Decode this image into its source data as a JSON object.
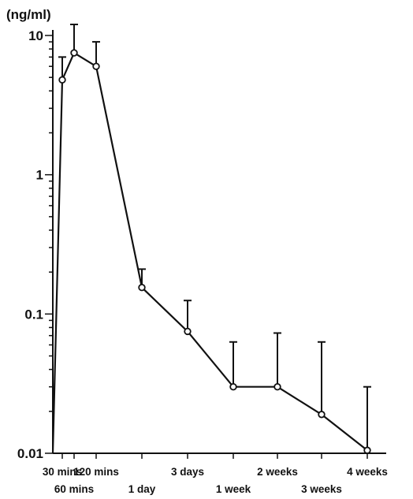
{
  "chart_data": {
    "type": "line",
    "ylabel": "(ng/ml)",
    "yscale": "log",
    "ylim": [
      0.01,
      10
    ],
    "y_ticks": [
      {
        "value": 10,
        "label": "10"
      },
      {
        "value": 1,
        "label": "1"
      },
      {
        "value": 0.1,
        "label": "0.1"
      },
      {
        "value": 0.01,
        "label": "0.01"
      }
    ],
    "x_time_days": [
      0.0208,
      0.0417,
      0.0833,
      1,
      3,
      7,
      14,
      21,
      28
    ],
    "x_labels": [
      "30 mins",
      "60 mins",
      "120 mins",
      "1 day",
      "3 days",
      "1 week",
      "2 weeks",
      "3 weeks",
      "4 weeks"
    ],
    "series": [
      {
        "values": [
          4.8,
          7.5,
          6.0,
          0.155,
          0.075,
          0.03,
          0.03,
          0.019,
          0.0105
        ],
        "error_upper": [
          7.0,
          12.0,
          9.0,
          0.21,
          0.125,
          0.063,
          0.073,
          0.063,
          0.03
        ]
      }
    ],
    "grid": false
  }
}
